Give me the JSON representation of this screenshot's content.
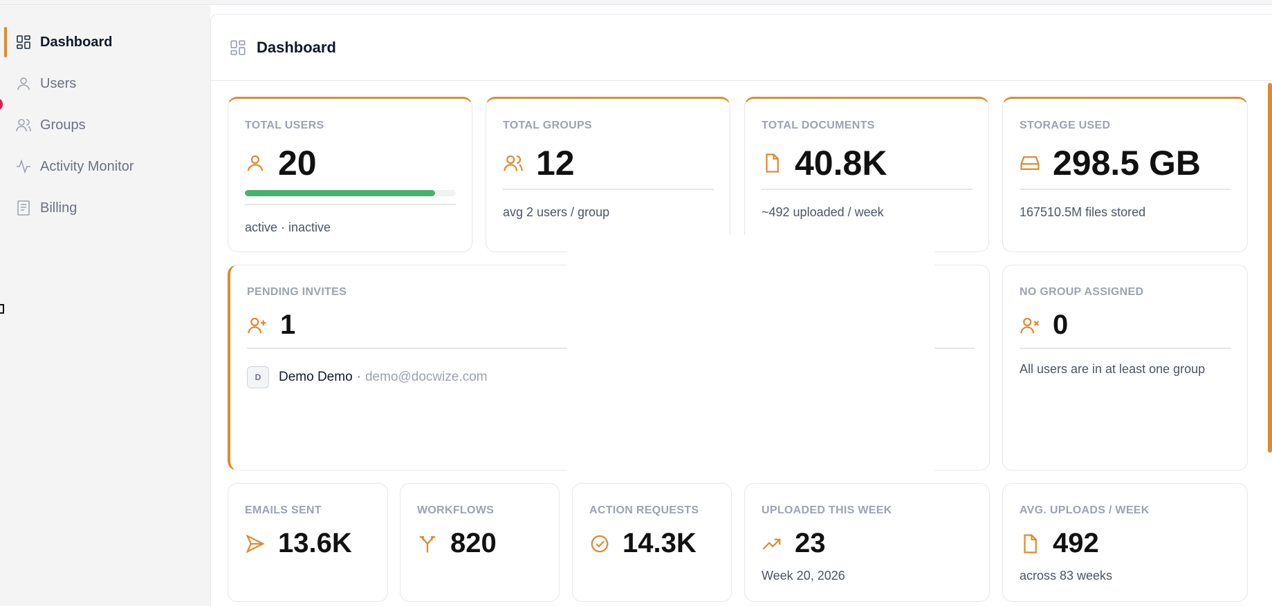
{
  "sidebar": {
    "items": [
      {
        "label": "Dashboard",
        "icon": "dashboard-grid-icon",
        "active": true
      },
      {
        "label": "Users",
        "icon": "user-icon"
      },
      {
        "label": "Groups",
        "icon": "users-icon"
      },
      {
        "label": "Activity Monitor",
        "icon": "activity-icon"
      },
      {
        "label": "Billing",
        "icon": "receipt-icon"
      }
    ]
  },
  "header": {
    "title": "Dashboard",
    "icon": "dashboard-grid-icon"
  },
  "colors": {
    "accent": "#e08a2e",
    "progress": "#4caf6e",
    "muted": "#9ca3af"
  },
  "stats": {
    "total_users": {
      "label": "TOTAL USERS",
      "value": "20",
      "active_fraction": 0.9,
      "sub": "active · inactive"
    },
    "total_groups": {
      "label": "TOTAL GROUPS",
      "value": "12",
      "sub": "avg 2 users / group"
    },
    "total_documents": {
      "label": "TOTAL DOCUMENTS",
      "value": "40.8K",
      "sub": "~492 uploaded / week"
    },
    "storage_used": {
      "label": "STORAGE USED",
      "value": "298.5 GB",
      "sub": "167510.5M files stored"
    },
    "pending_invites": {
      "label": "PENDING INVITES",
      "value": "1",
      "invite": {
        "initial": "D",
        "name": "Demo Demo",
        "separator": "·",
        "email": "demo@docwize.com"
      }
    },
    "no_group": {
      "label": "NO GROUP ASSIGNED",
      "value": "0",
      "sub": "All users are in at least one group"
    },
    "emails_sent": {
      "label": "EMAILS SENT",
      "value": "13.6K"
    },
    "workflows": {
      "label": "WORKFLOWS",
      "value": "820"
    },
    "action_requests": {
      "label": "ACTION REQUESTS",
      "value": "14.3K"
    },
    "uploaded_week": {
      "label": "UPLOADED THIS WEEK",
      "value": "23",
      "sub": "Week 20, 2026"
    },
    "avg_uploads": {
      "label": "AVG. UPLOADS / WEEK",
      "value": "492",
      "sub": "across 83 weeks"
    }
  }
}
